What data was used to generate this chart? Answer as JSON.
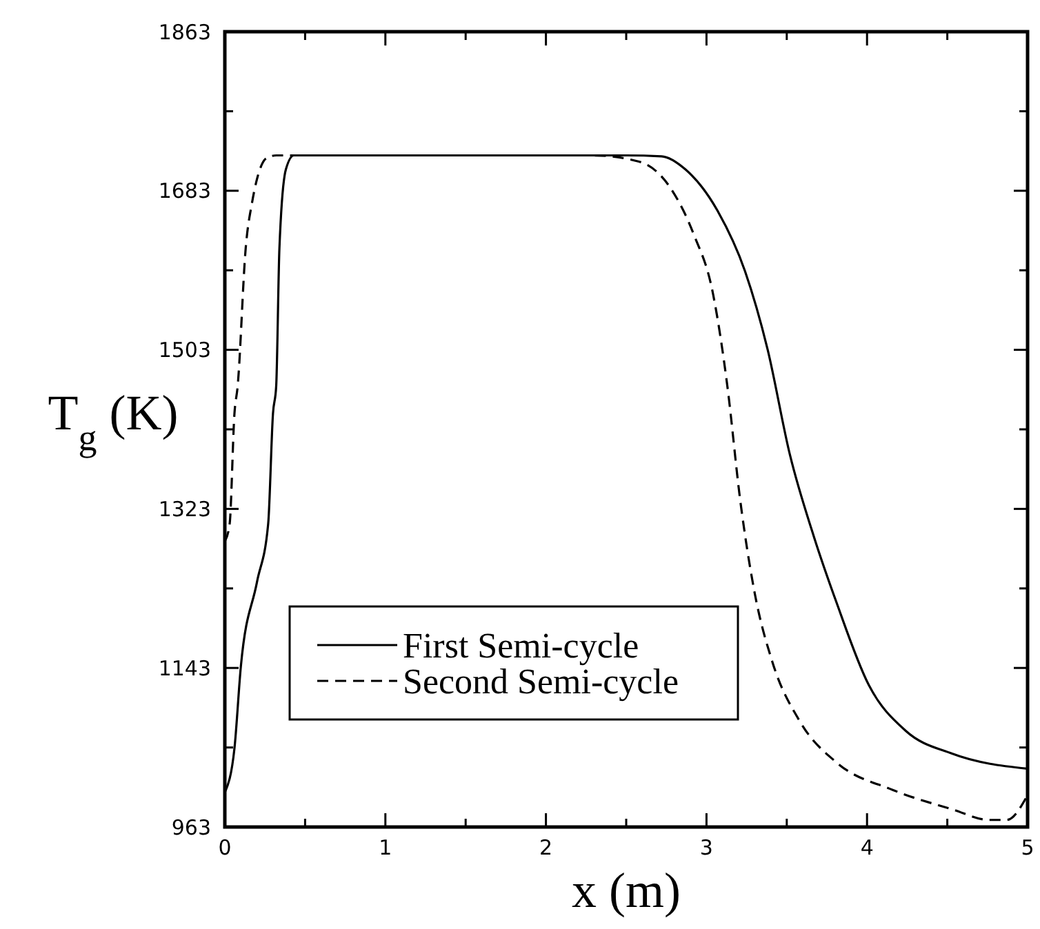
{
  "chart_data": {
    "type": "line",
    "xlabel": "x (m)",
    "ylabel": "T$_{g}$ (K)",
    "xlim": [
      0,
      5
    ],
    "ylim": [
      963,
      1863
    ],
    "xticks": [
      0,
      {
        "value": 0.5,
        "label": null
      },
      1,
      {
        "value": 1.5,
        "label": null
      },
      2,
      {
        "value": 2.5,
        "label": null
      },
      3,
      {
        "value": 3.5,
        "label": null
      },
      4,
      {
        "value": 4.5,
        "label": null
      },
      5
    ],
    "yticks": [
      963,
      {
        "value": 1053,
        "label": null
      },
      1143,
      {
        "value": 1233,
        "label": null
      },
      1323,
      {
        "value": 1413,
        "label": null
      },
      1503,
      {
        "value": 1593,
        "label": null
      },
      1683,
      {
        "value": 1773,
        "label": null
      },
      1863
    ],
    "legend": "bottom left",
    "grid": false,
    "series": [
      {
        "name": "First Semi-cycle",
        "color": "#000000",
        "line_style": "solid",
        "x": [
          0,
          0.06,
          0.1,
          0.2,
          0.27,
          0.3,
          0.32,
          0.34,
          0.38,
          0.43,
          0.6,
          1,
          1.5,
          2,
          2.5,
          2.72,
          2.87,
          3.07,
          3.24,
          3.38,
          3.52,
          3.67,
          3.81,
          4.01,
          4.24,
          4.53,
          5
        ],
        "values": [
          1002,
          1052,
          1145,
          1240,
          1306,
          1431,
          1462,
          1618,
          1707,
          1723,
          1723,
          1723,
          1723,
          1723,
          1723,
          1722,
          1707,
          1660,
          1592,
          1504,
          1384,
          1291,
          1217,
          1124,
          1072,
          1046,
          1029
        ]
      },
      {
        "name": "Second Semi-cycle",
        "color": "#000000",
        "line_style": "dashed",
        "x": [
          0,
          0.03,
          0.06,
          0.08,
          0.13,
          0.17,
          0.2,
          0.26,
          0.32,
          0.6,
          1,
          1.5,
          2,
          2.29,
          2.58,
          2.78,
          2.92,
          3.04,
          3.13,
          3.21,
          3.3,
          3.41,
          3.58,
          3.81,
          4.16,
          4.53,
          4.76,
          4.87,
          5
        ],
        "values": [
          1286,
          1306,
          1431,
          1462,
          1618,
          1670,
          1696,
          1720,
          1723,
          1723,
          1723,
          1723,
          1723,
          1723,
          1716,
          1685,
          1634,
          1567,
          1462,
          1333,
          1228,
          1150,
          1083,
          1036,
          1005,
          983,
          971,
          971,
          999
        ]
      }
    ]
  }
}
